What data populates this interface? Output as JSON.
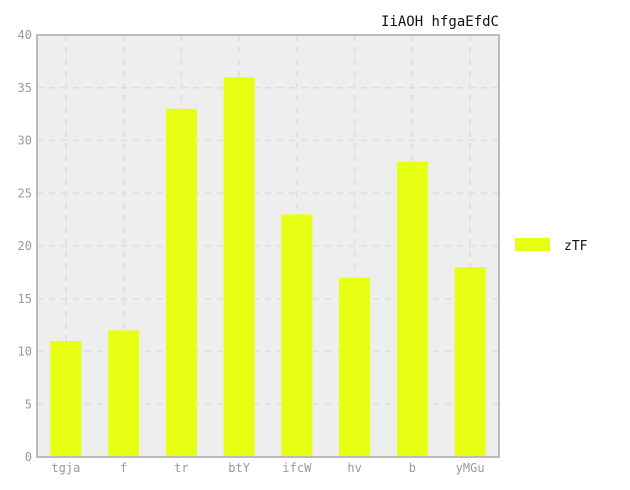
{
  "chart_data": {
    "type": "bar",
    "title": "IiAOH hfgaEfdC",
    "xlabel": "",
    "ylabel": "",
    "categories": [
      "tgja",
      "f",
      "tr",
      "btY",
      "ifcW",
      "hv",
      "b",
      "yMGu"
    ],
    "series": [
      {
        "name": "zTF",
        "values": [
          11,
          12,
          33,
          36,
          23,
          17,
          28,
          18
        ],
        "color": "#e6ff12"
      }
    ],
    "ylim": [
      0,
      40
    ],
    "yticks": [
      0,
      5,
      10,
      15,
      20,
      25,
      30,
      35,
      40
    ],
    "grid": true,
    "legend_position": "right",
    "colors": {
      "plot_background": "#eeeeee",
      "frame": "#bbbbbb",
      "grid": "#dddddd",
      "tick_text": "#999999"
    }
  }
}
